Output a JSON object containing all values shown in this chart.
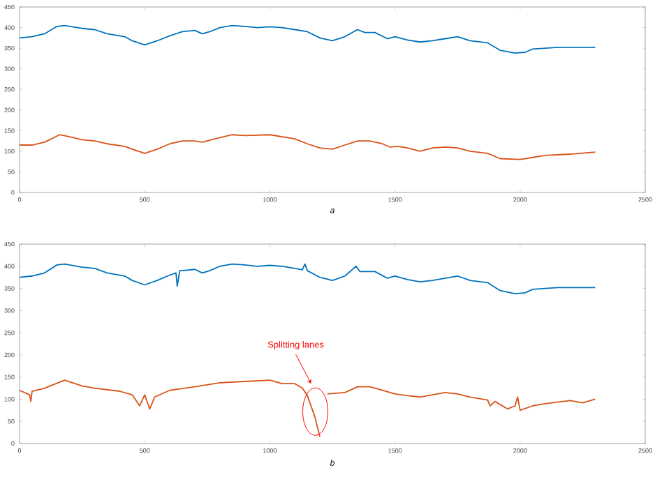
{
  "chart_data": [
    {
      "type": "line",
      "xlabel": "a",
      "xlim": [
        0,
        2500
      ],
      "xticks": [
        0,
        500,
        1000,
        1500,
        2000,
        2500
      ],
      "ylim": [
        0,
        450
      ],
      "yticks": [
        0,
        50,
        100,
        150,
        200,
        250,
        300,
        350,
        400,
        450
      ],
      "series": [
        {
          "color": "#0072bd",
          "x": [
            0,
            50,
            100,
            150,
            180,
            250,
            300,
            350,
            420,
            450,
            500,
            550,
            600,
            650,
            700,
            730,
            760,
            800,
            850,
            900,
            950,
            1000,
            1050,
            1100,
            1150,
            1200,
            1250,
            1300,
            1350,
            1380,
            1420,
            1470,
            1500,
            1550,
            1600,
            1650,
            1700,
            1750,
            1800,
            1870,
            1920,
            1980,
            2020,
            2050,
            2100,
            2150,
            2200,
            2300
          ],
          "values": [
            375,
            378,
            385,
            403,
            405,
            398,
            395,
            385,
            378,
            368,
            358,
            368,
            380,
            390,
            393,
            385,
            390,
            400,
            405,
            403,
            400,
            402,
            400,
            395,
            390,
            375,
            368,
            378,
            395,
            388,
            388,
            373,
            378,
            370,
            365,
            368,
            373,
            378,
            368,
            363,
            345,
            338,
            340,
            348,
            350,
            352,
            352,
            352
          ]
        },
        {
          "color": "#d95319",
          "x": [
            0,
            50,
            100,
            160,
            200,
            250,
            300,
            350,
            420,
            450,
            500,
            550,
            600,
            650,
            700,
            730,
            800,
            850,
            900,
            1000,
            1050,
            1100,
            1150,
            1200,
            1250,
            1300,
            1350,
            1400,
            1450,
            1480,
            1510,
            1550,
            1600,
            1650,
            1700,
            1750,
            1800,
            1870,
            1920,
            2000,
            2050,
            2100,
            2200,
            2300
          ],
          "values": [
            115,
            115,
            122,
            140,
            135,
            128,
            125,
            118,
            112,
            105,
            95,
            105,
            118,
            125,
            125,
            122,
            133,
            140,
            138,
            140,
            135,
            130,
            118,
            108,
            105,
            115,
            125,
            125,
            118,
            110,
            112,
            108,
            100,
            108,
            110,
            108,
            100,
            95,
            82,
            80,
            85,
            90,
            93,
            98
          ]
        }
      ]
    },
    {
      "type": "line",
      "xlabel": "b",
      "xlim": [
        0,
        2500
      ],
      "xticks": [
        0,
        500,
        1000,
        1500,
        2000,
        2500
      ],
      "ylim": [
        0,
        450
      ],
      "yticks": [
        0,
        50,
        100,
        150,
        200,
        250,
        300,
        350,
        400,
        450
      ],
      "annotations": [
        {
          "text": "Splitting lanes",
          "x": 1165,
          "y": 135
        }
      ],
      "series": [
        {
          "color": "#0072bd",
          "x": [
            0,
            50,
            100,
            150,
            180,
            250,
            300,
            350,
            420,
            450,
            500,
            550,
            600,
            625,
            630,
            640,
            650,
            700,
            730,
            760,
            800,
            850,
            900,
            950,
            1000,
            1050,
            1100,
            1130,
            1140,
            1150,
            1200,
            1250,
            1300,
            1345,
            1360,
            1420,
            1470,
            1500,
            1550,
            1600,
            1650,
            1700,
            1750,
            1800,
            1870,
            1920,
            1980,
            2020,
            2050,
            2100,
            2150,
            2200,
            2300
          ],
          "values": [
            375,
            378,
            385,
            403,
            405,
            398,
            395,
            385,
            378,
            368,
            358,
            368,
            380,
            385,
            355,
            390,
            390,
            393,
            385,
            390,
            400,
            405,
            403,
            400,
            402,
            400,
            395,
            392,
            405,
            390,
            375,
            368,
            378,
            400,
            388,
            388,
            373,
            378,
            370,
            365,
            368,
            373,
            378,
            368,
            363,
            345,
            338,
            340,
            348,
            350,
            352,
            352,
            352
          ]
        },
        {
          "color": "#d95319",
          "x": [
            0,
            40,
            45,
            50,
            100,
            180,
            250,
            300,
            400,
            450,
            480,
            500,
            520,
            540,
            600,
            700,
            800,
            900,
            1000,
            1050,
            1100,
            1130,
            1150,
            1180,
            1200,
            1215,
            1230,
            1300,
            1350,
            1400,
            1450,
            1500,
            1550,
            1600,
            1700,
            1750,
            1800,
            1870,
            1880,
            1900,
            1950,
            1980,
            1990,
            2000,
            2050,
            2100,
            2200,
            2250,
            2300
          ],
          "values": [
            120,
            110,
            95,
            118,
            125,
            143,
            130,
            125,
            118,
            110,
            85,
            110,
            78,
            105,
            120,
            128,
            137,
            140,
            143,
            135,
            135,
            125,
            108,
            60,
            15,
            null,
            112,
            115,
            128,
            128,
            120,
            112,
            108,
            105,
            115,
            112,
            105,
            98,
            85,
            95,
            78,
            85,
            105,
            75,
            85,
            90,
            97,
            92,
            100
          ]
        }
      ]
    }
  ]
}
